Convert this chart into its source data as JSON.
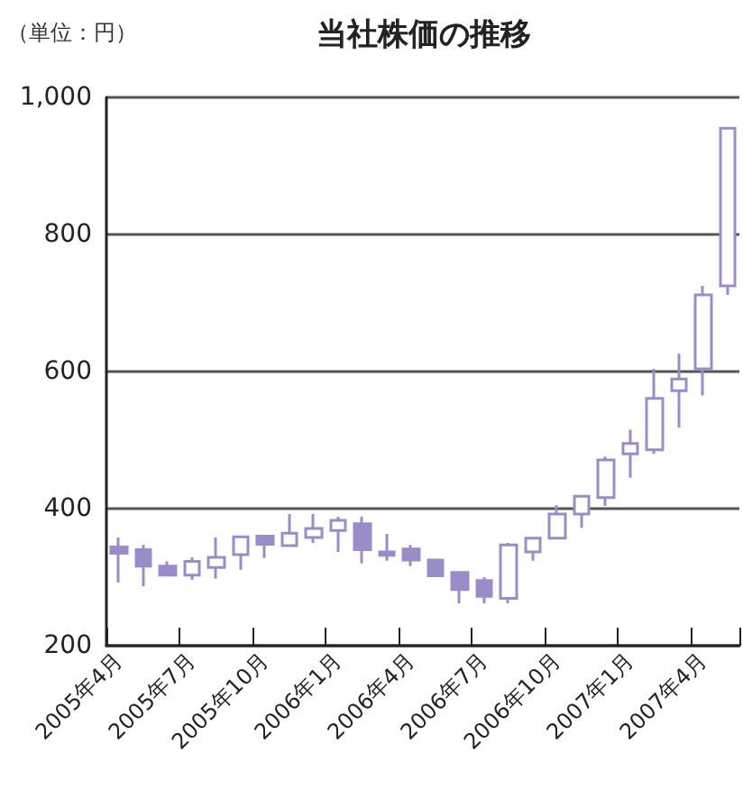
{
  "chart_data": {
    "type": "candlestick",
    "title": "当社株価の推移",
    "annotations": [
      "（単位：円）"
    ],
    "categories": [
      "2005年4月",
      null,
      null,
      "2005年7月",
      null,
      null,
      "2005年10月",
      null,
      null,
      "2006年1月",
      null,
      null,
      "2006年4月",
      null,
      null,
      "2006年7月",
      null,
      null,
      "2006年10月",
      null,
      null,
      "2007年1月",
      null,
      null,
      "2007年4月",
      null
    ],
    "series": [
      {
        "color": "#9a8cc8",
        "ohlc": [
          [
            344,
            358,
            292,
            335
          ],
          [
            340,
            347,
            287,
            316
          ],
          [
            316,
            323,
            303,
            303
          ],
          [
            303,
            329,
            296,
            323
          ],
          [
            314,
            358,
            298,
            329
          ],
          [
            333,
            359,
            311,
            359
          ],
          [
            360,
            360,
            328,
            348
          ],
          [
            346,
            392,
            346,
            364
          ],
          [
            358,
            392,
            350,
            371
          ],
          [
            368,
            388,
            337,
            383
          ],
          [
            378,
            388,
            320,
            340
          ],
          [
            337,
            363,
            324,
            332
          ],
          [
            341,
            347,
            316,
            325
          ],
          [
            325,
            325,
            302,
            302
          ],
          [
            307,
            307,
            262,
            282
          ],
          [
            295,
            300,
            262,
            272
          ],
          [
            269,
            350,
            262,
            347
          ],
          [
            337,
            357,
            324,
            357
          ],
          [
            357,
            405,
            357,
            392
          ],
          [
            392,
            418,
            372,
            418
          ],
          [
            416,
            476,
            404,
            471
          ],
          [
            480,
            515,
            445,
            495
          ],
          [
            486,
            604,
            480,
            561
          ],
          [
            572,
            626,
            518,
            589
          ],
          [
            604,
            725,
            565,
            712
          ],
          [
            725,
            955,
            712,
            955
          ]
        ]
      }
    ],
    "ylim": [
      200,
      1000
    ],
    "yticks": [
      200,
      400,
      600,
      800,
      {
        "value": 1000,
        "label": "1,000"
      }
    ],
    "grid": "y"
  }
}
